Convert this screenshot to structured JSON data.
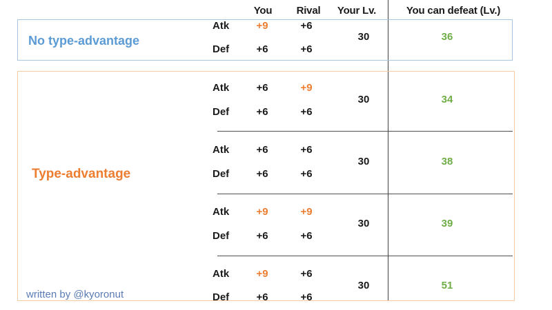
{
  "colors": {
    "background": "#FFFFFF",
    "accent_blue": "#5B9BD5",
    "border_blue": "#A8C6E2",
    "accent_orange": "#ED7D31",
    "border_orange": "#F2CBA2",
    "accent_green": "#70AD47",
    "divider_dark": "#3F3F3F",
    "separator_gray": "#4D4D4D",
    "text_dark": "#1A1A1A",
    "credit_blue": "#5B7BB4"
  },
  "header": {
    "you": "You",
    "rival": "Rival",
    "your_lv": "Your Lv.",
    "defeat": "You can defeat (Lv.)"
  },
  "row_labels": {
    "atk": "Atk",
    "def": "Def"
  },
  "sections": [
    {
      "label": "No type-advantage"
    },
    {
      "label": "Type-advantage"
    }
  ],
  "groups": [
    {
      "atk_you": "+9",
      "atk_you_hl": true,
      "atk_rival": "+6",
      "atk_rival_hl": false,
      "def_you": "+6",
      "def_rival": "+6",
      "your_lv": "30",
      "defeat": "36"
    },
    {
      "atk_you": "+6",
      "atk_you_hl": false,
      "atk_rival": "+9",
      "atk_rival_hl": true,
      "def_you": "+6",
      "def_rival": "+6",
      "your_lv": "30",
      "defeat": "34"
    },
    {
      "atk_you": "+6",
      "atk_you_hl": false,
      "atk_rival": "+6",
      "atk_rival_hl": false,
      "def_you": "+6",
      "def_rival": "+6",
      "your_lv": "30",
      "defeat": "38"
    },
    {
      "atk_you": "+9",
      "atk_you_hl": true,
      "atk_rival": "+9",
      "atk_rival_hl": true,
      "def_you": "+6",
      "def_rival": "+6",
      "your_lv": "30",
      "defeat": "39"
    },
    {
      "atk_you": "+9",
      "atk_you_hl": true,
      "atk_rival": "+6",
      "atk_rival_hl": false,
      "def_you": "+6",
      "def_rival": "+6",
      "your_lv": "30",
      "defeat": "51"
    }
  ],
  "footer": {
    "credit": "written by @kyoronut"
  }
}
